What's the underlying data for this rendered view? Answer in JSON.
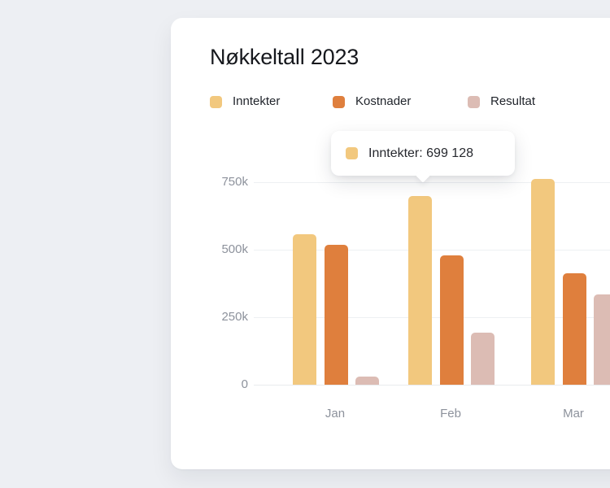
{
  "card": {
    "title": "Nøkkeltall 2023"
  },
  "legend": {
    "items": [
      {
        "label": "Inntekter",
        "color": "#f2c87e"
      },
      {
        "label": "Kostnader",
        "color": "#df7f3d"
      },
      {
        "label": "Resultat",
        "color": "#dcbcb4"
      }
    ]
  },
  "tooltip": {
    "series": "Inntekter",
    "category": "Feb",
    "value_display": "699 128",
    "text": "Inntekter: 699 128",
    "swatch_color": "#f2c87e"
  },
  "chart_data": {
    "type": "bar",
    "title": "Nøkkeltall 2023",
    "categories": [
      "Jan",
      "Feb",
      "Mar"
    ],
    "series": [
      {
        "name": "Inntekter",
        "color": "#f2c87e",
        "values": [
          556000,
          699128,
          762000
        ]
      },
      {
        "name": "Kostnader",
        "color": "#df7f3d",
        "values": [
          517000,
          478000,
          413000
        ]
      },
      {
        "name": "Resultat",
        "color": "#dcbcb4",
        "values": [
          30000,
          192000,
          333000
        ]
      }
    ],
    "xlabel": "",
    "ylabel": "",
    "y_ticks": [
      {
        "label": "0",
        "value": 0
      },
      {
        "label": "250k",
        "value": 250000
      },
      {
        "label": "500k",
        "value": 500000
      },
      {
        "label": "750k",
        "value": 750000
      }
    ],
    "ylim": [
      0,
      800000
    ],
    "grid": "horizontal",
    "legend_position": "top",
    "tooltip": {
      "series": "Inntekter",
      "category": "Feb",
      "value": 699128,
      "display": "Inntekter: 699 128"
    }
  },
  "colors": {
    "page_bg": "#edeff3",
    "card_bg": "#ffffff",
    "title_text": "#16181d",
    "legend_text": "#1f232a",
    "tooltip_text": "#26282e",
    "axis_text": "#8d929c",
    "gridline": "#eef0f3",
    "baseline": "#e9ebee"
  }
}
